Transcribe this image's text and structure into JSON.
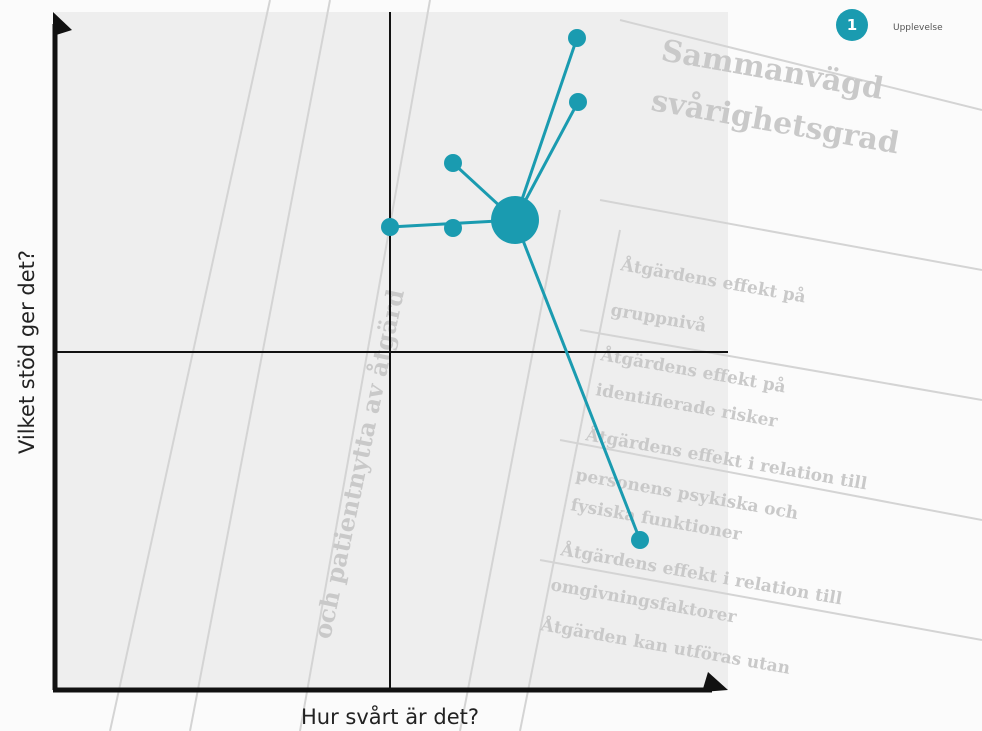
{
  "diagram": {
    "x_axis_label": "Hur svårt är det?",
    "y_axis_label": "Vilket stöd ger det?",
    "legend": {
      "badge": "1",
      "label": "Upplevelse"
    },
    "background_text": [
      "Sammanvägd",
      "svårighetsgrad",
      "och patientnytta av åtgärd",
      "Åtgärdens effekt på",
      "gruppnivå",
      "Åtgärdens effekt på",
      "identifierade risker",
      "Åtgärdens effekt i relation till",
      "personens psykiska och",
      "fysiska funktioner",
      "Åtgärdens effekt i relation till",
      "omgivningsfaktorer",
      "Åtgärden kan utföras utan"
    ]
  }
}
